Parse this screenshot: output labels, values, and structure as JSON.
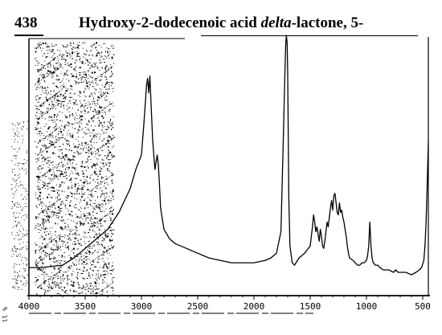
{
  "header": {
    "number": "438",
    "title_pre": "Hydroxy-2-dodecenoic acid ",
    "title_italic": "delta",
    "title_post": "-lactone, 5-"
  },
  "side_mark": "ll %",
  "chart_data": {
    "type": "line",
    "title": "Hydroxy-2-dodecenoic acid delta-lactone, 5-",
    "xlabel": "",
    "ylabel": "",
    "x_axis_direction": "decreasing",
    "xlim": [
      4000,
      450
    ],
    "ylim": [
      0,
      100
    ],
    "grid": false,
    "x_ticks": [
      4000,
      3500,
      3000,
      2500,
      2000,
      1500,
      1000,
      500
    ],
    "x_tick_labels": [
      "4000",
      "3500",
      "3000",
      "2500",
      "2000",
      "1500",
      "1000",
      "500"
    ],
    "series": [
      {
        "x": [
          4000,
          3900,
          3700,
          3600,
          3500,
          3400,
          3300,
          3200,
          3100,
          3050,
          3000,
          2980,
          2965,
          2955,
          2945,
          2935,
          2925,
          2915,
          2900,
          2880,
          2870,
          2860,
          2850,
          2840,
          2830,
          2800,
          2750,
          2700,
          2600,
          2500,
          2400,
          2300,
          2200,
          2100,
          2000,
          1900,
          1850,
          1800,
          1760,
          1740,
          1725,
          1718,
          1712,
          1705,
          1700,
          1695,
          1690,
          1680,
          1660,
          1640,
          1600,
          1550,
          1500,
          1480,
          1470,
          1460,
          1450,
          1440,
          1430,
          1420,
          1410,
          1400,
          1390,
          1380,
          1370,
          1360,
          1350,
          1340,
          1330,
          1320,
          1310,
          1300,
          1290,
          1280,
          1270,
          1260,
          1250,
          1240,
          1230,
          1220,
          1210,
          1200,
          1190,
          1180,
          1170,
          1160,
          1150,
          1120,
          1100,
          1080,
          1060,
          1040,
          1020,
          1000,
          990,
          980,
          970,
          960,
          950,
          940,
          920,
          900,
          880,
          850,
          800,
          760,
          740,
          720,
          700,
          650,
          600,
          560,
          530,
          510,
          490,
          480,
          470,
          460,
          450
        ],
        "y": [
          3,
          3,
          4,
          7,
          11,
          15,
          19,
          26,
          36,
          44,
          50,
          62,
          72,
          79,
          82,
          76,
          83,
          72,
          56,
          44,
          47,
          50,
          46,
          38,
          28,
          19,
          15,
          13,
          11,
          9,
          7,
          6,
          5,
          5,
          5,
          6,
          7,
          9,
          18,
          55,
          84,
          96,
          100,
          97,
          84,
          58,
          32,
          12,
          5,
          4,
          7,
          9,
          12,
          20,
          25,
          22,
          18,
          20,
          17,
          14,
          19,
          16,
          12,
          11,
          14,
          18,
          22,
          20,
          24,
          28,
          31,
          27,
          33,
          34,
          30,
          26,
          25,
          30,
          26,
          27,
          24,
          22,
          19,
          16,
          12,
          9,
          7,
          6,
          5,
          4,
          4,
          5,
          5,
          6,
          8,
          12,
          22,
          12,
          7,
          5,
          4,
          4,
          3,
          2,
          2,
          1,
          2,
          1,
          1,
          1,
          0,
          1,
          2,
          3,
          6,
          12,
          22,
          38,
          55
        ]
      }
    ]
  }
}
